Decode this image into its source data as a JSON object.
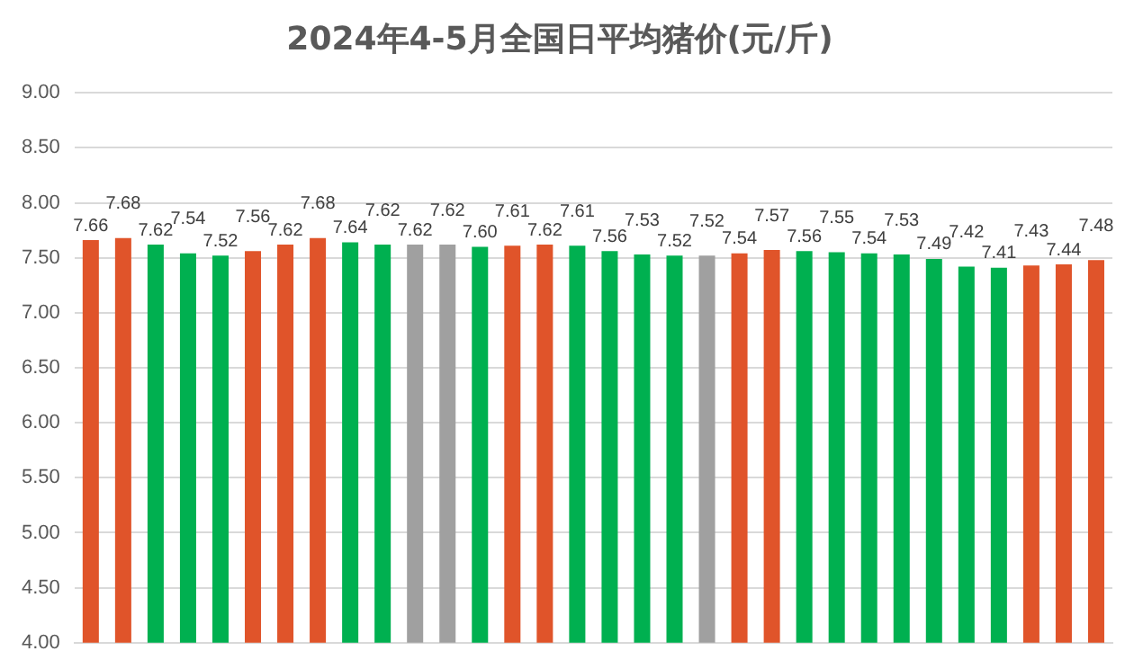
{
  "chart_data": {
    "type": "bar",
    "title": "2024年4-5月全国日平均猪价(元/斤)",
    "categories": [
      null,
      null,
      null,
      null,
      null,
      null,
      null,
      null,
      null,
      null,
      null,
      null,
      null,
      null,
      null,
      null,
      null,
      null,
      null,
      null,
      null,
      null,
      null,
      null,
      null,
      null,
      null,
      null,
      null,
      null,
      null,
      null
    ],
    "values": [
      7.66,
      7.68,
      7.62,
      7.54,
      7.52,
      7.56,
      7.62,
      7.68,
      7.64,
      7.62,
      7.62,
      7.62,
      7.6,
      7.61,
      7.62,
      7.61,
      7.56,
      7.53,
      7.52,
      7.52,
      7.54,
      7.57,
      7.56,
      7.55,
      7.54,
      7.53,
      7.49,
      7.42,
      7.41,
      7.43,
      7.44,
      7.48
    ],
    "value_labels": [
      "7.66",
      "7.68",
      "7.62",
      "7.54",
      "7.52",
      "7.56",
      "7.62",
      "7.68",
      "7.64",
      "7.62",
      "7.62",
      "7.62",
      "7.60",
      "7.61",
      "7.62",
      "7.61",
      "7.56",
      "7.53",
      "7.52",
      "7.52",
      "7.54",
      "7.57",
      "7.56",
      "7.55",
      "7.54",
      "7.53",
      "7.49",
      "7.42",
      "7.41",
      "7.43",
      "7.44",
      "7.48"
    ],
    "colors": [
      "#e0542a",
      "#e0542a",
      "#00b050",
      "#00b050",
      "#00b050",
      "#e0542a",
      "#e0542a",
      "#e0542a",
      "#00b050",
      "#00b050",
      "#a0a0a0",
      "#a0a0a0",
      "#00b050",
      "#e0542a",
      "#e0542a",
      "#00b050",
      "#00b050",
      "#00b050",
      "#00b050",
      "#a0a0a0",
      "#e0542a",
      "#e0542a",
      "#00b050",
      "#00b050",
      "#00b050",
      "#00b050",
      "#00b050",
      "#00b050",
      "#00b050",
      "#e0542a",
      "#e0542a",
      "#e0542a"
    ],
    "ylim": [
      4,
      9
    ],
    "yticks": [
      {
        "value": 4,
        "label": "4.00"
      },
      {
        "value": 4.5,
        "label": "4.50"
      },
      {
        "value": 5,
        "label": "5.00"
      },
      {
        "value": 5.5,
        "label": "5.50"
      },
      {
        "value": 6,
        "label": "6.00"
      },
      {
        "value": 6.5,
        "label": "6.50"
      },
      {
        "value": 7,
        "label": "7.00"
      },
      {
        "value": 7.5,
        "label": "7.50"
      },
      {
        "value": 8,
        "label": "8.00"
      },
      {
        "value": 8.5,
        "label": "8.50"
      },
      {
        "value": 9,
        "label": "9.00"
      }
    ],
    "grid": "y",
    "legend": false
  }
}
